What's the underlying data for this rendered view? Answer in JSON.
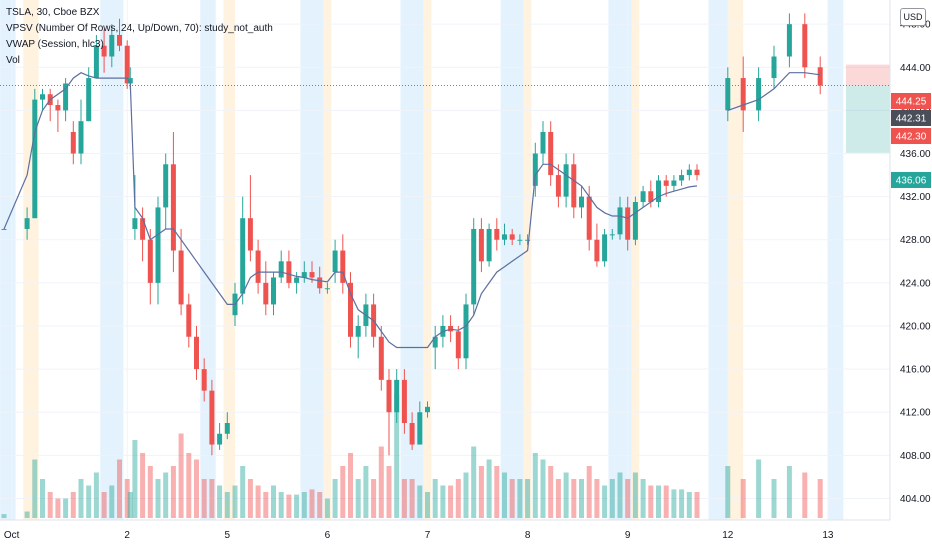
{
  "header": {
    "symbol_line": "TSLA, 30, Cboe BZX",
    "study_vpsv": "VPSV (Number Of Rows, 24, Up/Down, 70): study_not_auth",
    "study_vwap": "VWAP (Session, hlc3)",
    "study_vol": "Vol"
  },
  "currency_button": "USD",
  "colors": {
    "up": "#26a69a",
    "down": "#ef5350",
    "vwap": "#5d6fa0",
    "blue_band": "#e3f2fd",
    "orange_band": "#fff3e0",
    "price_line": "#ef5350"
  },
  "chart_data": {
    "type": "candlestick",
    "ylim": [
      402,
      450
    ],
    "y_ticks": [
      404,
      408,
      412,
      416,
      420,
      424,
      428,
      432,
      436,
      440,
      444,
      448
    ],
    "x_ticks": [
      {
        "label": "Oct",
        "bar": 1
      },
      {
        "label": "2",
        "bar": 16
      },
      {
        "label": "5",
        "bar": 29
      },
      {
        "label": "6",
        "bar": 42
      },
      {
        "label": "7",
        "bar": 55
      },
      {
        "label": "8",
        "bar": 68
      },
      {
        "label": "9",
        "bar": 81
      },
      {
        "label": "12",
        "bar": 94
      },
      {
        "label": "13",
        "bar": 107
      }
    ],
    "price_labels": [
      {
        "value": "444.25",
        "price": 444.25,
        "color": "#ef5350"
      },
      {
        "value": "442.31",
        "price": 442.31,
        "color": "#4a4e59"
      },
      {
        "value": "442.30",
        "price": 442.3,
        "color": "#ef5350"
      },
      {
        "value": "436.06",
        "price": 436.06,
        "color": "#26a69a"
      }
    ],
    "position_zone": {
      "entry": 442.3,
      "stop": 444.25,
      "target": 436.06
    },
    "candles": [
      [
        429.0,
        429.0,
        429.0,
        429.0
      ],
      [
        429.0,
        431.0,
        428.0,
        430.0
      ],
      [
        430.0,
        442.0,
        430.0,
        441.0
      ],
      [
        441.0,
        442.0,
        440.0,
        441.5
      ],
      [
        441.5,
        442.0,
        439.0,
        440.5
      ],
      [
        440.5,
        441.0,
        438.0,
        440.0
      ],
      [
        440.0,
        443.0,
        439.0,
        442.5
      ],
      [
        438.0,
        439.0,
        435.0,
        436.0
      ],
      [
        436.0,
        441.0,
        435.0,
        439.0
      ],
      [
        439.0,
        444.0,
        439.0,
        443.0
      ],
      [
        443.0,
        447.0,
        443.0,
        446.0
      ],
      [
        446.0,
        447.5,
        443.5,
        445.0
      ],
      [
        445.0,
        448.0,
        444.0,
        447.0
      ],
      [
        447.0,
        448.5,
        445.5,
        446.0
      ],
      [
        446.0,
        446.5,
        442.0,
        442.5
      ],
      [
        442.5,
        444.0,
        442.0,
        443.0
      ],
      [
        429.0,
        434.0,
        428.0,
        430.0
      ],
      [
        430.0,
        431.0,
        426.0,
        428.0
      ],
      [
        428.0,
        429.0,
        422.0,
        424.0
      ],
      [
        424.0,
        432.0,
        422.0,
        431.0
      ],
      [
        431.0,
        436.0,
        429.0,
        435.0
      ],
      [
        435.0,
        438.0,
        425.0,
        427.0
      ],
      [
        427.0,
        429.0,
        421.0,
        422.0
      ],
      [
        422.0,
        423.0,
        418.0,
        419.0
      ],
      [
        419.0,
        420.0,
        415.0,
        416.0
      ],
      [
        416.0,
        417.0,
        413.0,
        414.0
      ],
      [
        414.0,
        415.0,
        408.0,
        409.0
      ],
      [
        409.0,
        411.0,
        408.5,
        410.0
      ],
      [
        410.0,
        412.0,
        409.5,
        411.0
      ],
      [
        421.0,
        424.0,
        420.0,
        423.0
      ],
      [
        423.0,
        432.0,
        422.0,
        430.0
      ],
      [
        430.0,
        434.0,
        426.0,
        427.0
      ],
      [
        427.0,
        428.0,
        423.0,
        424.0
      ],
      [
        424.0,
        426.0,
        421.0,
        422.0
      ],
      [
        422.0,
        425.0,
        421.0,
        424.5
      ],
      [
        424.5,
        427.0,
        424.0,
        426.0
      ],
      [
        426.0,
        427.0,
        423.5,
        424.0
      ],
      [
        424.0,
        425.0,
        423.0,
        424.5
      ],
      [
        424.5,
        426.0,
        424.0,
        425.0
      ],
      [
        425.0,
        426.0,
        424.0,
        424.5
      ],
      [
        424.5,
        425.5,
        423.0,
        423.5
      ],
      [
        423.5,
        424.0,
        423.0,
        423.5
      ],
      [
        425.0,
        428.0,
        424.0,
        427.0
      ],
      [
        427.0,
        428.5,
        423.0,
        424.0
      ],
      [
        424.0,
        425.0,
        418.0,
        419.0
      ],
      [
        419.0,
        421.0,
        417.0,
        420.0
      ],
      [
        420.0,
        423.0,
        419.0,
        422.0
      ],
      [
        422.0,
        423.0,
        418.0,
        419.0
      ],
      [
        419.0,
        420.0,
        414.0,
        415.0
      ],
      [
        415.0,
        416.0,
        408.0,
        412.0
      ],
      [
        412.0,
        416.0,
        411.0,
        415.0
      ],
      [
        415.0,
        416.0,
        410.0,
        411.0
      ],
      [
        411.0,
        412.0,
        408.5,
        409.0
      ],
      [
        409.0,
        413.0,
        409.0,
        412.0
      ],
      [
        412.0,
        413.0,
        411.5,
        412.5
      ],
      [
        418.0,
        420.0,
        416.0,
        419.0
      ],
      [
        419.0,
        421.0,
        418.0,
        420.0
      ],
      [
        420.0,
        421.0,
        418.5,
        419.5
      ],
      [
        419.5,
        420.0,
        416.0,
        417.0
      ],
      [
        417.0,
        423.0,
        416.0,
        422.0
      ],
      [
        422.0,
        430.0,
        421.0,
        429.0
      ],
      [
        429.0,
        430.0,
        425.0,
        426.0
      ],
      [
        426.0,
        429.5,
        425.5,
        429.0
      ],
      [
        429.0,
        430.0,
        427.0,
        428.0
      ],
      [
        428.0,
        429.5,
        427.5,
        428.5
      ],
      [
        428.5,
        429.0,
        427.5,
        428.0
      ],
      [
        428.0,
        428.5,
        427.5,
        428.0
      ],
      [
        428.0,
        428.5,
        427.5,
        428.0
      ],
      [
        433.0,
        437.0,
        432.0,
        436.0
      ],
      [
        436.0,
        439.0,
        435.0,
        438.0
      ],
      [
        438.0,
        439.0,
        433.0,
        434.0
      ],
      [
        434.0,
        435.0,
        431.0,
        432.0
      ],
      [
        432.0,
        436.0,
        431.0,
        435.0
      ],
      [
        435.0,
        436.0,
        430.0,
        431.0
      ],
      [
        431.0,
        433.0,
        430.0,
        432.0
      ],
      [
        432.0,
        433.0,
        427.0,
        428.0
      ],
      [
        428.0,
        429.5,
        425.5,
        426.0
      ],
      [
        426.0,
        429.0,
        425.5,
        428.5
      ],
      [
        428.5,
        429.0,
        428.0,
        428.5
      ],
      [
        428.5,
        432.0,
        428.0,
        431.0
      ],
      [
        431.0,
        432.0,
        427.0,
        428.0
      ],
      [
        428.0,
        432.0,
        427.5,
        431.5
      ],
      [
        431.5,
        433.0,
        431.0,
        432.5
      ],
      [
        432.5,
        433.5,
        431.0,
        431.5
      ],
      [
        431.5,
        434.0,
        431.0,
        433.5
      ],
      [
        433.5,
        434.0,
        432.0,
        433.0
      ],
      [
        433.0,
        434.0,
        432.5,
        433.5
      ],
      [
        433.5,
        434.5,
        433.0,
        434.0
      ],
      [
        434.0,
        435.0,
        433.5,
        434.5
      ],
      [
        434.5,
        435.0,
        433.5,
        434.0
      ],
      [
        440.0,
        444.0,
        439.0,
        443.0
      ],
      [
        443.0,
        445.0,
        438.0,
        440.0
      ],
      [
        440.0,
        444.0,
        439.0,
        443.0
      ],
      [
        443.0,
        446.0,
        442.0,
        445.0
      ],
      [
        445.0,
        449.0,
        444.0,
        448.0
      ],
      [
        448.0,
        449.0,
        443.0,
        444.0
      ],
      [
        444.0,
        445.0,
        441.5,
        442.3
      ]
    ],
    "candle_bars": [
      0,
      3,
      4,
      5,
      6,
      7,
      8,
      9,
      10,
      11,
      12,
      13,
      14,
      15,
      16,
      16.4,
      17,
      18,
      19,
      20,
      21,
      22,
      23,
      24,
      25,
      26,
      27,
      28,
      29,
      30,
      31,
      32,
      33,
      34,
      35,
      36,
      37,
      38,
      39,
      40,
      41,
      42,
      43,
      44,
      45,
      46,
      47,
      48,
      49,
      50,
      51,
      52,
      53,
      54,
      55,
      56,
      57,
      58,
      59,
      60,
      61,
      62,
      63,
      64,
      65,
      66,
      67,
      68,
      69,
      70,
      71,
      72,
      73,
      74,
      75,
      76,
      77,
      78,
      79,
      80,
      81,
      82,
      83,
      84,
      85,
      86,
      87,
      88,
      89,
      90,
      94,
      96,
      98,
      100,
      102,
      104,
      106
    ],
    "vwap": [
      429,
      434,
      438,
      440,
      441,
      441.5,
      442,
      443,
      443.5,
      443.2,
      443,
      443,
      443,
      443,
      443,
      442.5,
      431,
      430,
      428,
      428.5,
      429,
      429,
      428,
      427,
      426,
      425,
      424,
      423,
      422,
      422,
      423,
      424.5,
      425,
      425,
      425,
      425,
      424.8,
      424.6,
      424.5,
      424.3,
      424.2,
      424.1,
      425,
      425,
      423,
      421.5,
      421,
      420.5,
      419.5,
      418.5,
      418,
      418,
      418,
      418,
      418,
      419,
      419.5,
      419.7,
      419.6,
      420,
      421,
      423,
      424,
      425,
      425.5,
      426,
      426.5,
      427,
      434,
      435,
      435,
      434.5,
      434,
      433.5,
      433,
      432,
      431,
      430.5,
      430.2,
      430.2,
      430,
      430.5,
      431,
      431.5,
      432,
      432.3,
      432.5,
      432.7,
      432.9,
      433,
      440,
      440.5,
      441,
      442,
      443.5,
      443.5,
      443.3
    ],
    "volume": [
      0.3,
      0.5,
      4.5,
      3,
      2,
      1.5,
      1.5,
      2,
      3,
      2.5,
      3.5,
      2,
      2.5,
      4.5,
      3,
      2,
      6,
      5,
      4,
      3,
      3.5,
      4,
      6.5,
      5,
      4.5,
      3,
      3,
      2.5,
      2,
      2.5,
      4,
      3,
      2.5,
      2,
      2.5,
      2,
      1.8,
      1.8,
      2,
      2.2,
      2,
      1.5,
      3,
      4,
      5,
      3,
      4,
      3,
      5.5,
      4,
      9.5,
      3,
      3,
      2.5,
      2,
      3,
      2.5,
      2.5,
      3,
      3.5,
      5.5,
      4,
      4.5,
      4,
      3.5,
      3,
      3,
      3,
      5,
      4.5,
      4,
      3,
      3.5,
      3,
      3,
      4,
      3,
      2.5,
      3,
      3.5,
      3,
      3.5,
      3,
      2.5,
      2.5,
      2.5,
      2.2,
      2.2,
      2,
      2,
      4,
      3,
      4.5,
      3,
      4,
      3.5,
      3
    ],
    "vol_max": 10
  }
}
